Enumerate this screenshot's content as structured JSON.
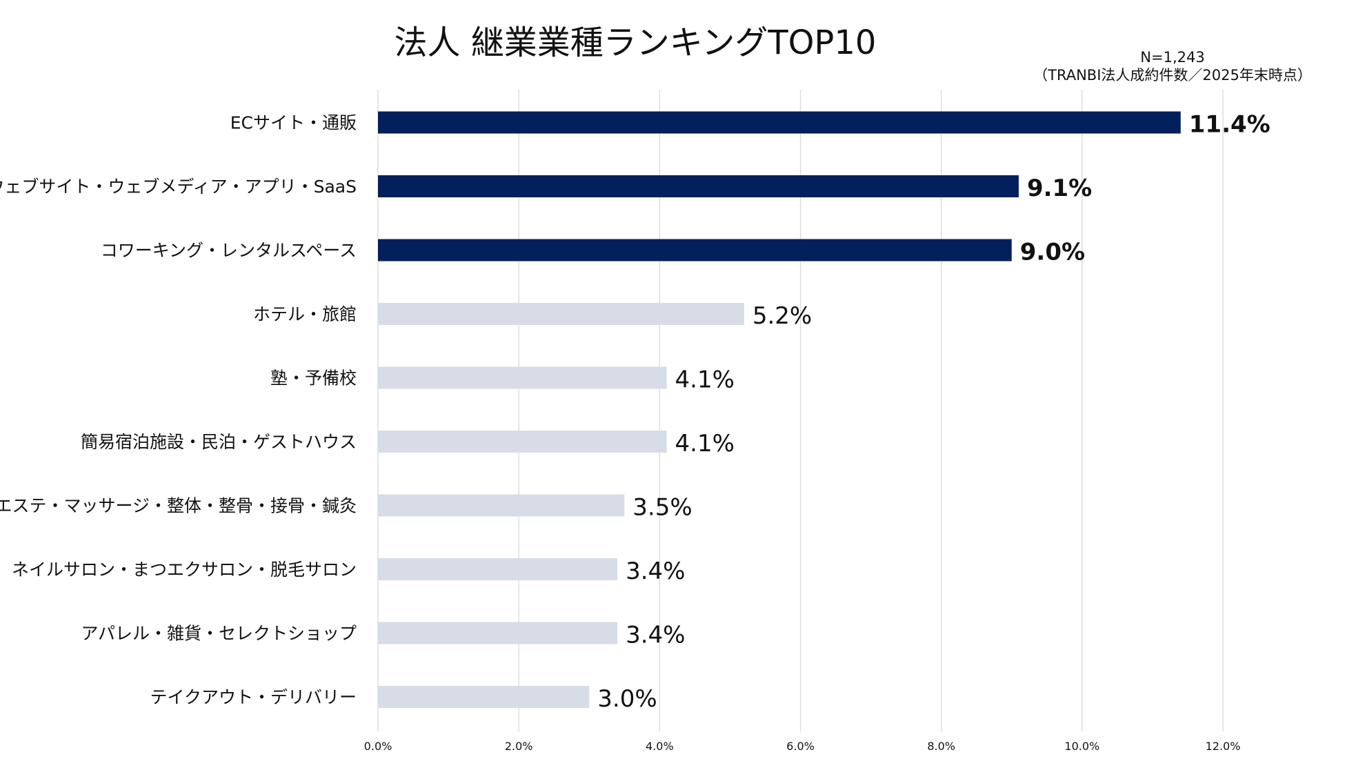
{
  "chart_data": {
    "type": "bar",
    "orientation": "horizontal",
    "title": "法人 継業業種ランキングTOP10",
    "note_line1": "N=1,243",
    "note_line2": "（TRANBI法人成約件数／2025年末時点）",
    "categories": [
      "ECサイト・通販",
      "ウェブサイト・ウェブメディア・アプリ・SaaS",
      "コワーキング・レンタルスペース",
      "ホテル・旅館",
      "塾・予備校",
      "簡易宿泊施設・民泊・ゲストハウス",
      "エステ・マッサージ・整体・整骨・接骨・鍼灸",
      "ネイルサロン・まつエクサロン・脱毛サロン",
      "アパレル・雑貨・セレクトショップ",
      "テイクアウト・デリバリー"
    ],
    "values": [
      11.4,
      9.1,
      9.0,
      5.2,
      4.1,
      4.1,
      3.5,
      3.4,
      3.4,
      3.0
    ],
    "value_labels": [
      "11.4%",
      "9.1%",
      "9.0%",
      "5.2%",
      "4.1%",
      "4.1%",
      "3.5%",
      "3.4%",
      "3.4%",
      "3.0%"
    ],
    "highlight_top": 3,
    "xlim": [
      0,
      12
    ],
    "ticks": [
      "0.0%",
      "2.0%",
      "4.0%",
      "6.0%",
      "8.0%",
      "10.0%",
      "12.0%"
    ],
    "tick_values": [
      0,
      2,
      4,
      6,
      8,
      10,
      12
    ],
    "grid": true,
    "colors": {
      "highlight": "#04205c",
      "normal": "#d6dde7",
      "grid": "#d9d9d9",
      "text": "#111111"
    }
  }
}
